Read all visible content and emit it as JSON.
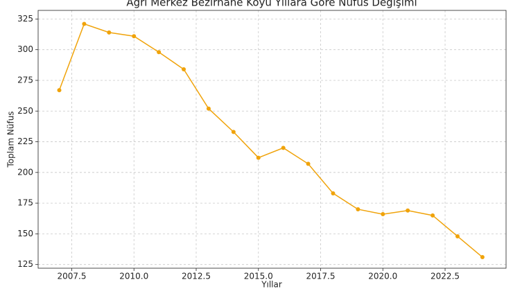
{
  "chart_data": {
    "type": "line",
    "title": "Ağrı Merkez Bezirhane Köyü Yıllara Göre Nüfus Değişimi",
    "x_label": "Yıllar",
    "y_label": "Toplam Nüfus",
    "x": [
      2007,
      2008,
      2009,
      2010,
      2011,
      2012,
      2013,
      2014,
      2015,
      2016,
      2017,
      2018,
      2019,
      2020,
      2021,
      2022,
      2023,
      2024
    ],
    "series": [
      {
        "name": "Toplam Nüfus",
        "color": "#f0a30a",
        "values": [
          267,
          321,
          314,
          311,
          298,
          284,
          252,
          233,
          212,
          220,
          207,
          183,
          170,
          166,
          169,
          165,
          148,
          131
        ]
      }
    ],
    "xlim": [
      2006.15,
      2024.95
    ],
    "xticks": [
      {
        "value": 2007.5,
        "label": "2007.5"
      },
      {
        "value": 2010,
        "label": "2010.0"
      },
      {
        "value": 2012.5,
        "label": "2012.5"
      },
      {
        "value": 2015,
        "label": "2015.0"
      },
      {
        "value": 2017.5,
        "label": "2017.5"
      },
      {
        "value": 2020,
        "label": "2020.0"
      },
      {
        "value": 2022.5,
        "label": "2022.5"
      }
    ],
    "ylim": [
      122,
      332
    ],
    "yticks": [
      125,
      150,
      175,
      200,
      225,
      250,
      275,
      300,
      325
    ],
    "grid": true
  }
}
